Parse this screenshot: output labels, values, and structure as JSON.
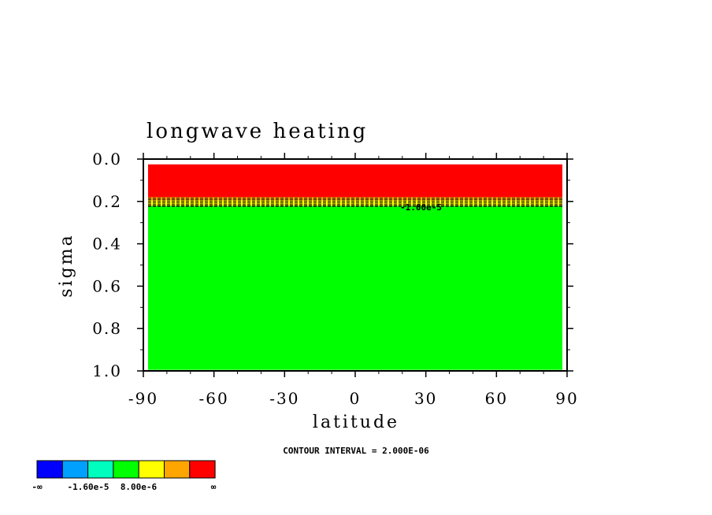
{
  "chart_data": {
    "type": "heatmap",
    "title": "longwave heating",
    "xlabel": "latitude",
    "ylabel": "sigma",
    "x_ticks": [
      "-90",
      "-60",
      "-30",
      "0",
      "30",
      "60",
      "90"
    ],
    "x_tick_values": [
      -90,
      -60,
      -30,
      0,
      30,
      60,
      90
    ],
    "y_ticks": [
      "0.0",
      "0.2",
      "0.4",
      "0.6",
      "0.8",
      "1.0"
    ],
    "y_tick_values": [
      0.0,
      0.2,
      0.4,
      0.6,
      0.8,
      1.0
    ],
    "xlim": [
      -90,
      90
    ],
    "ylim": [
      0.0,
      1.0
    ],
    "y_inverted": true,
    "contour_interval_text": "CONTOUR INTERVAL = 2.000E-06",
    "contour_label": "-1.00e-5",
    "bands": [
      {
        "sigma_top": 0.025,
        "sigma_bottom": 0.18,
        "color": "#ff0000"
      },
      {
        "sigma_top": 0.18,
        "sigma_bottom": 0.195,
        "color": "#ffa500"
      },
      {
        "sigma_top": 0.195,
        "sigma_bottom": 0.22,
        "color": "#ffff00"
      },
      {
        "sigma_top": 0.22,
        "sigma_bottom": 0.995,
        "color": "#00ff00"
      }
    ],
    "data_xlim": [
      -88,
      88
    ],
    "colorbar": {
      "colors": [
        "#0000ff",
        "#00a0ff",
        "#00ffbf",
        "#00ff00",
        "#ffff00",
        "#ffa500",
        "#ff0000"
      ],
      "labels": [
        "-∞",
        "-1.60e-5",
        "8.00e-6",
        "∞"
      ]
    }
  }
}
